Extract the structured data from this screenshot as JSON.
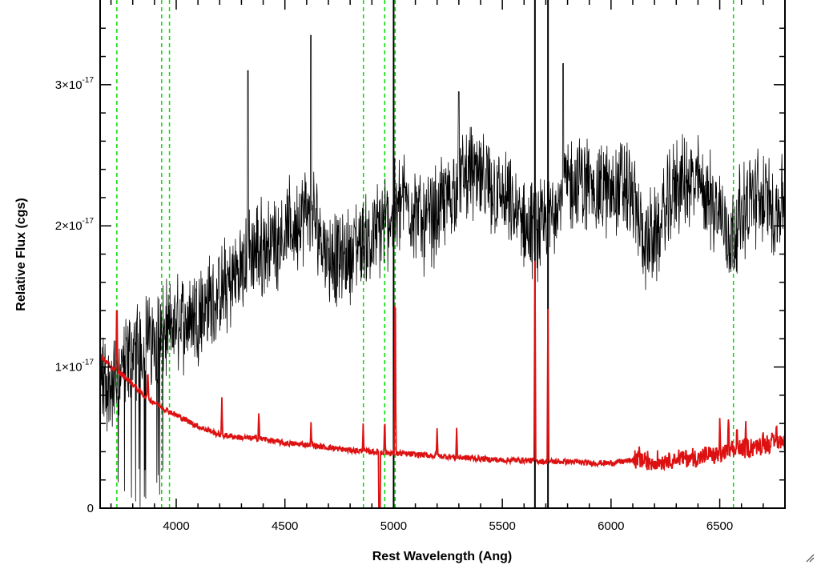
{
  "chart_data": {
    "type": "line",
    "title": "",
    "xlabel": "Rest Wavelength (Ang)",
    "ylabel": "Relative Flux (cgs)",
    "xlim": [
      3650,
      6800
    ],
    "ylim": [
      0,
      3.6e-17
    ],
    "grid": false,
    "x_ticks": [
      {
        "value": 4000,
        "label": "4000"
      },
      {
        "value": 4500,
        "label": "4500"
      },
      {
        "value": 5000,
        "label": "5000"
      },
      {
        "value": 5500,
        "label": "5500"
      },
      {
        "value": 6000,
        "label": "6000"
      },
      {
        "value": 6500,
        "label": "6500"
      }
    ],
    "y_ticks": [
      {
        "value": 0,
        "mantissa": "0",
        "exponent": ""
      },
      {
        "value": 1e-17,
        "mantissa": "1×10",
        "exponent": "-17"
      },
      {
        "value": 2e-17,
        "mantissa": "2×10",
        "exponent": "-17"
      },
      {
        "value": 3e-17,
        "mantissa": "3×10",
        "exponent": "-17"
      }
    ],
    "series": [
      {
        "color": "#000000",
        "x": [
          3650,
          3700,
          3750,
          3800,
          3850,
          3900,
          3950,
          4000,
          4050,
          4100,
          4150,
          4200,
          4250,
          4300,
          4350,
          4400,
          4450,
          4500,
          4550,
          4600,
          4650,
          4700,
          4750,
          4800,
          4850,
          4900,
          4950,
          5000,
          5050,
          5100,
          5150,
          5200,
          5250,
          5300,
          5350,
          5400,
          5450,
          5500,
          5550,
          5600,
          5650,
          5700,
          5750,
          5800,
          5850,
          5900,
          5950,
          6000,
          6050,
          6100,
          6150,
          6200,
          6250,
          6300,
          6350,
          6400,
          6450,
          6500,
          6550,
          6600,
          6650,
          6700,
          6750,
          6800
        ],
        "y": [
          9e-18,
          8.5e-18,
          1e-17,
          1.1e-17,
          1.2e-17,
          1.2e-17,
          1.25e-17,
          1.3e-17,
          1.35e-17,
          1.4e-17,
          1.45e-17,
          1.5e-17,
          1.6e-17,
          1.7e-17,
          1.8e-17,
          1.85e-17,
          1.9e-17,
          1.95e-17,
          2e-17,
          2.1e-17,
          2e-17,
          1.8e-17,
          1.75e-17,
          1.8e-17,
          1.9e-17,
          1.9e-17,
          2e-17,
          2.1e-17,
          2.2e-17,
          2.1e-17,
          2e-17,
          2.1e-17,
          2.2e-17,
          2.3e-17,
          2.4e-17,
          2.3e-17,
          2.25e-17,
          2.2e-17,
          2.1e-17,
          2e-17,
          1.95e-17,
          2e-17,
          2.2e-17,
          2.3e-17,
          2.3e-17,
          2.3e-17,
          2.25e-17,
          2.25e-17,
          2.3e-17,
          2.2e-17,
          1.9e-17,
          1.9e-17,
          2.1e-17,
          2.3e-17,
          2.3e-17,
          2.3e-17,
          2.2e-17,
          2.1e-17,
          1.9e-17,
          2.1e-17,
          2.2e-17,
          2.2e-17,
          2.1e-17,
          2.2e-17
        ],
        "peaks": [
          [
            4620,
            3.35e-17
          ],
          [
            4330,
            3.1e-17
          ],
          [
            5300,
            2.95e-17
          ],
          [
            5780,
            3.15e-17
          ]
        ]
      },
      {
        "color": "#dd1111",
        "x": [
          3650,
          3700,
          3750,
          3800,
          3850,
          3900,
          3950,
          4000,
          4050,
          4100,
          4150,
          4200,
          4300,
          4400,
          4500,
          4600,
          4700,
          4800,
          4900,
          5000,
          5100,
          5200,
          5300,
          5400,
          5500,
          5600,
          5700,
          5800,
          5900,
          6000,
          6100,
          6200,
          6300,
          6400,
          6500,
          6600,
          6700,
          6800
        ],
        "y": [
          1.08e-17,
          1e-17,
          9.5e-18,
          8.8e-18,
          8e-18,
          7.5e-18,
          7e-18,
          6.6e-18,
          6.2e-18,
          5.8e-18,
          5.5e-18,
          5.2e-18,
          5e-18,
          4.9e-18,
          4.6e-18,
          4.5e-18,
          4.3e-18,
          4.1e-18,
          4e-18,
          3.9e-18,
          3.8e-18,
          3.7e-18,
          3.6e-18,
          3.5e-18,
          3.4e-18,
          3.4e-18,
          3.3e-18,
          3.3e-18,
          3.2e-18,
          3.2e-18,
          3.4e-18,
          3.3e-18,
          3.5e-18,
          3.6e-18,
          3.8e-18,
          4.2e-18,
          4.5e-18,
          4.8e-18
        ],
        "emission_lines": [
          [
            3727,
            5.5e-18
          ],
          [
            3869,
            2e-18
          ],
          [
            4210,
            2.5e-18
          ],
          [
            4380,
            2e-18
          ],
          [
            4620,
            1.5e-18
          ],
          [
            4860,
            2e-18
          ],
          [
            4959,
            2.5e-18
          ],
          [
            5007,
            1.35e-17
          ],
          [
            5200,
            2e-18
          ],
          [
            5290,
            2e-18
          ],
          [
            5650,
            1.4e-17
          ],
          [
            5710,
            1.1e-17
          ],
          [
            6130,
            1.5e-18
          ],
          [
            6500,
            2e-18
          ],
          [
            6540,
            2.5e-18
          ],
          [
            6580,
            2e-18
          ],
          [
            6620,
            1.5e-18
          ],
          [
            6700,
            1e-18
          ],
          [
            6760,
            1.5e-18
          ]
        ],
        "absorption_lines": [
          [
            4935,
            -4e-18
          ]
        ]
      }
    ],
    "green_dashed_lines": [
      3727,
      3933,
      3969,
      4861,
      4959,
      5007,
      6563
    ],
    "black_vertical_lines": [
      5000,
      5650,
      5710
    ],
    "colors": {
      "axes": "#000000",
      "green_lines": "#00dd00",
      "observed": "#000000",
      "model": "#dd1111"
    }
  }
}
